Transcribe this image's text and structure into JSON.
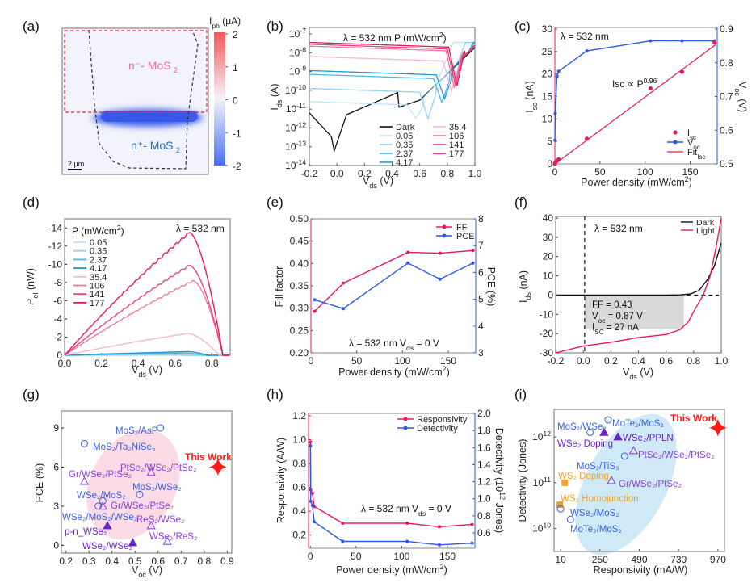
{
  "colors": {
    "pink": "#e8185e",
    "blue": "#2a5ae6",
    "dark": "#111111",
    "frame": "#8a8a8a",
    "red_star": "#ff1a1a",
    "purple": "#7a2fd0",
    "orange": "#f2a32a",
    "pink_ellipse": "#fbdbe6",
    "blue_ellipse": "#cfe9f7",
    "fill_box": "#d9d9d9"
  },
  "chart_data": [
    {
      "id": "a",
      "panel_label": "(a)",
      "type": "heatmap",
      "title": "",
      "colorbar": {
        "label": "I_ph (μA)",
        "ticks": [
          "2",
          "1",
          "0",
          "-1",
          "-2"
        ],
        "range": [
          -2,
          2
        ]
      },
      "regions": [
        {
          "label": "n⁻- MoS₂",
          "color": "#e86aa0"
        },
        {
          "label": "n⁺- MoS₂",
          "color": "#2272c0"
        }
      ],
      "scale_bar": "2 μm",
      "hotspot_value": -2
    },
    {
      "id": "b",
      "panel_label": "(b)",
      "type": "line",
      "annotation": "λ = 532 nm    P (mW/cm²)",
      "xlabel": "V_ds (V)",
      "ylabel": "I_ds (A)",
      "yscale": "log",
      "xlim": [
        -0.2,
        1.0
      ],
      "ylim_exp": [
        -14,
        -7
      ],
      "xticks": [
        "-0.2",
        "0.0",
        "0.2",
        "0.4",
        "0.6",
        "0.8",
        "1.0"
      ],
      "yticks": [
        "10⁻⁷",
        "10⁻⁸",
        "10⁻⁹",
        "10⁻¹⁰",
        "10⁻¹¹",
        "10⁻¹²",
        "10⁻¹³",
        "10⁻¹⁴"
      ],
      "series": [
        {
          "name": "Dark",
          "color": "#111111",
          "log_isc": -11.2,
          "voc": -0.01,
          "dip": -13.0
        },
        {
          "name": "0.05",
          "color": "#bfe6f5",
          "log_isc": -10.6,
          "voc": 0.57,
          "dip": -11.3
        },
        {
          "name": "0.35",
          "color": "#8fd3ef",
          "log_isc": -9.9,
          "voc": 0.66,
          "dip": -11.3
        },
        {
          "name": "2.37",
          "color": "#4fb8e6",
          "log_isc": -9.15,
          "voc": 0.76,
          "dip": -10.4
        },
        {
          "name": "4.17",
          "color": "#1b9ad6",
          "log_isc": -8.95,
          "voc": 0.78,
          "dip": -10.2
        },
        {
          "name": "35.4",
          "color": "#f5b8cf",
          "log_isc": -8.2,
          "voc": 0.83,
          "dip": -9.8
        },
        {
          "name": "106",
          "color": "#ee7aa4",
          "log_isc": -7.65,
          "voc": 0.85,
          "dip": -9.6
        },
        {
          "name": "141",
          "color": "#e8457f",
          "log_isc": -7.55,
          "voc": 0.86,
          "dip": -9.5
        },
        {
          "name": "177",
          "color": "#e8185e",
          "log_isc": -7.45,
          "voc": 0.87,
          "dip": -9.5
        }
      ]
    },
    {
      "id": "c",
      "panel_label": "(c)",
      "type": "scatter",
      "annotation": "λ = 532 nm",
      "fit_annotation": "Isc ∝ P^0.96",
      "xlabel": "Power density (mW/cm²)",
      "ylabel_left": "I_sc (nA)",
      "ylabel_right": "V_oc (V)",
      "xlim": [
        0,
        180
      ],
      "ylim_left": [
        0,
        30
      ],
      "ylim_right": [
        0.5,
        0.9
      ],
      "xticks": [
        "0",
        "50",
        "100",
        "150"
      ],
      "yticks_left": [
        "0",
        "5",
        "10",
        "15",
        "20",
        "25",
        "30"
      ],
      "yticks_right": [
        "0.5",
        "0.6",
        "0.7",
        "0.8",
        "0.9"
      ],
      "x": [
        0.05,
        0.35,
        2.37,
        4.17,
        35.4,
        106,
        141,
        177
      ],
      "series": [
        {
          "name": "I_sc",
          "axis": "left",
          "values": [
            0.02,
            0.2,
            0.7,
            1.0,
            5.6,
            16.8,
            20.5,
            27
          ]
        },
        {
          "name": "V_oc",
          "axis": "right",
          "values": [
            0.57,
            0.65,
            0.76,
            0.775,
            0.835,
            0.865,
            0.865,
            0.865
          ]
        },
        {
          "name": "Fit_I_sc",
          "axis": "left",
          "fit": [
            [
              0,
              0
            ],
            [
              178,
              26.5
            ]
          ]
        }
      ],
      "legend": [
        "I_sc",
        "V_oc",
        "Fit_I_sc"
      ]
    },
    {
      "id": "d",
      "panel_label": "(d)",
      "type": "line",
      "annotation": "λ = 532 nm",
      "legend_title": "P (mW/cm²)",
      "xlabel": "V_ds (V)",
      "ylabel": "P_el (nW)",
      "xlim": [
        0,
        0.9
      ],
      "ylim": [
        0,
        -15
      ],
      "xticks": [
        "0.0",
        "0.2",
        "0.4",
        "0.6",
        "0.8"
      ],
      "yticks": [
        "0",
        "-2",
        "-4",
        "-6",
        "-8",
        "-10",
        "-12",
        "-14"
      ],
      "series": [
        {
          "name": "0.05",
          "color": "#bfe6f5",
          "peak": -0.02,
          "vpeak": 0.55,
          "voc": 0.57
        },
        {
          "name": "0.35",
          "color": "#8fd3ef",
          "peak": -0.08,
          "vpeak": 0.6,
          "voc": 0.66
        },
        {
          "name": "2.37",
          "color": "#4fb8e6",
          "peak": -0.25,
          "vpeak": 0.65,
          "voc": 0.76
        },
        {
          "name": "4.17",
          "color": "#1b9ad6",
          "peak": -0.4,
          "vpeak": 0.67,
          "voc": 0.78
        },
        {
          "name": "35.4",
          "color": "#f5b8cf",
          "peak": -2.4,
          "vpeak": 0.67,
          "voc": 0.84
        },
        {
          "name": "106",
          "color": "#ee7aa4",
          "peak": -8.2,
          "vpeak": 0.7,
          "voc": 0.86
        },
        {
          "name": "141",
          "color": "#e8457f",
          "peak": -9.9,
          "vpeak": 0.68,
          "voc": 0.86
        },
        {
          "name": "177",
          "color": "#e8185e",
          "peak": -13.5,
          "vpeak": 0.68,
          "voc": 0.86
        }
      ]
    },
    {
      "id": "e",
      "panel_label": "(e)",
      "type": "line",
      "annotation": "λ = 532 nm   V_ds = 0 V",
      "xlabel": "Power density (mW/cm²)",
      "ylabel_left": "Fill factor",
      "ylabel_right": "PCE (%)",
      "xlim": [
        0,
        180
      ],
      "ylim_left": [
        0.2,
        0.5
      ],
      "ylim_right": [
        3,
        8
      ],
      "xticks": [
        "0",
        "50",
        "100",
        "150"
      ],
      "yticks_left": [
        "0.20",
        "0.25",
        "0.30",
        "0.35",
        "0.40",
        "0.45",
        "0.50"
      ],
      "yticks_right": [
        "3",
        "4",
        "5",
        "6",
        "7",
        "8"
      ],
      "x": [
        4.17,
        35.4,
        106,
        141,
        177
      ],
      "series": [
        {
          "name": "FF",
          "axis": "left",
          "values": [
            0.293,
            0.356,
            0.425,
            0.423,
            0.429
          ]
        },
        {
          "name": "PCE",
          "axis": "right",
          "values": [
            4.98,
            4.65,
            6.35,
            5.75,
            6.35
          ]
        }
      ]
    },
    {
      "id": "f",
      "panel_label": "(f)",
      "type": "line",
      "annotation": "λ = 532 nm",
      "xlabel": "V_ds (V)",
      "ylabel": "I_ds (nA)",
      "xlim": [
        -0.2,
        1.0
      ],
      "ylim": [
        -30,
        40
      ],
      "xticks": [
        "-0.2",
        "0.0",
        "0.2",
        "0.4",
        "0.6",
        "0.8",
        "1.0"
      ],
      "yticks": [
        "-30",
        "-20",
        "-10",
        "0",
        "10",
        "20",
        "30",
        "40"
      ],
      "info_box": [
        "FF = 0.43",
        "V_oc = 0.87 V",
        "I_SC = 27 nA"
      ],
      "series": [
        {
          "name": "Dark",
          "color": "#111111",
          "x": [
            -0.2,
            0.6,
            0.7,
            0.78,
            0.84,
            0.9,
            0.95,
            1.0
          ],
          "y": [
            0,
            0,
            0.1,
            0.6,
            2.5,
            8,
            15,
            27
          ]
        },
        {
          "name": "Light",
          "color": "#e8185e",
          "x": [
            -0.2,
            0.0,
            0.2,
            0.4,
            0.6,
            0.7,
            0.76,
            0.82,
            0.87,
            0.92,
            0.96,
            1.0
          ],
          "y": [
            -30,
            -26.5,
            -24.5,
            -22,
            -20.5,
            -18,
            -14,
            -6,
            0,
            10,
            24,
            40
          ]
        }
      ]
    },
    {
      "id": "g",
      "panel_label": "(g)",
      "type": "scatter",
      "xlabel": "V_oc (V)",
      "ylabel": "PCE (%)",
      "xlim": [
        0.18,
        0.92
      ],
      "ylim": [
        -0.6,
        10.3
      ],
      "xticks": [
        "0.2",
        "0.3",
        "0.4",
        "0.5",
        "0.6",
        "0.7",
        "0.8",
        "0.9"
      ],
      "yticks": [
        "0",
        "3",
        "6",
        "9"
      ],
      "points": [
        {
          "label": "MoS₂/AsP",
          "x": 0.61,
          "y": 9.0,
          "marker": "circle",
          "color": "#3b62e0"
        },
        {
          "label": "MoS₂/Ta₂NiSe₅",
          "x": 0.28,
          "y": 7.8,
          "marker": "circle",
          "color": "#3b62e0"
        },
        {
          "label": "PtSe₂/WSe₂/PtSe₂",
          "x": 0.57,
          "y": 5.6,
          "marker": "triangle",
          "color": "#8a3fd6"
        },
        {
          "label": "Gr/WSe₂/PtSe₂",
          "x": 0.28,
          "y": 4.9,
          "marker": "triangle",
          "color": "#8a3fd6"
        },
        {
          "label": "MoS₂/WSe₂",
          "x": 0.52,
          "y": 3.9,
          "marker": "circle",
          "color": "#3b62e0"
        },
        {
          "label": "WSe₂/MoS₂",
          "x": 0.36,
          "y": 3.4,
          "marker": "circle",
          "color": "#3b62e0"
        },
        {
          "label": "Gr/WSe₂/PtSe₂",
          "x": 0.36,
          "y": 3.0,
          "marker": "triangle",
          "color": "#8a3fd6"
        },
        {
          "label": "WSe₂/MoS₂/WSe₂",
          "x": 0.34,
          "y": 3.0,
          "marker": "circle",
          "color": "#3b62e0"
        },
        {
          "label": "ReS₂/WSe₂",
          "x": 0.57,
          "y": 1.5,
          "marker": "triangle",
          "color": "#8a3fd6"
        },
        {
          "label": "p-n_WSe₂",
          "x": 0.38,
          "y": 1.5,
          "marker": "triangle-filled",
          "color": "#6a22c8"
        },
        {
          "label": "WSe₂/ReS₂",
          "x": 0.64,
          "y": 0.3,
          "marker": "triangle",
          "color": "#8a3fd6"
        },
        {
          "label": "WSe₂/WSe₂",
          "x": 0.49,
          "y": 0.2,
          "marker": "triangle-filled",
          "color": "#6a22c8"
        },
        {
          "label": "This Work",
          "x": 0.86,
          "y": 6.0,
          "marker": "star",
          "color": "#ff1a1a"
        }
      ]
    },
    {
      "id": "h",
      "panel_label": "(h)",
      "type": "line",
      "annotation": "λ = 532 nm   V_ds = 0 V",
      "xlabel": "Power density (mW/cm²)",
      "ylabel_left": "Responsivity (A/W)",
      "ylabel_right": "Detectivity (10¹² Jones)",
      "xlim": [
        -2,
        180
      ],
      "ylim_left": [
        0.09,
        1.22
      ],
      "ylim_right": [
        0.42,
        2.0
      ],
      "xticks": [
        "0",
        "50",
        "100",
        "150"
      ],
      "yticks_left": [
        "0.2",
        "0.4",
        "0.6",
        "0.8",
        "1.0",
        "1.2"
      ],
      "yticks_right": [
        "0.6",
        "0.8",
        "1.0",
        "1.2",
        "1.4",
        "1.6",
        "1.8",
        "2.0"
      ],
      "x": [
        0.05,
        0.35,
        2.37,
        4.17,
        35.4,
        106,
        141,
        177
      ],
      "series": [
        {
          "name": "Responsivity",
          "axis": "left",
          "values": [
            0.98,
            0.58,
            0.55,
            0.44,
            0.3,
            0.3,
            0.27,
            0.29
          ]
        },
        {
          "name": "Detectivity",
          "axis": "right",
          "values": [
            1.62,
            0.97,
            0.92,
            0.73,
            0.5,
            0.5,
            0.46,
            0.48
          ]
        }
      ]
    },
    {
      "id": "i",
      "panel_label": "(i)",
      "type": "scatter",
      "xlabel": "Responsivity (mA/W)",
      "ylabel": "Detectivity (Jones)",
      "yscale": "log",
      "xlim": [
        -30,
        1010
      ],
      "ylim_exp": [
        9.5,
        12.6
      ],
      "xticks": [
        "10",
        "250",
        "490",
        "730",
        "970"
      ],
      "yticks": [
        "10¹⁰",
        "10¹¹",
        "10¹²"
      ],
      "points": [
        {
          "label": "MoS₂/WSe₂",
          "x": 190,
          "log_y": 12.1,
          "marker": "circle",
          "color": "#3b62e0"
        },
        {
          "label": "MoTe₂/MoS₂",
          "x": 300,
          "log_y": 12.37,
          "marker": "circle",
          "color": "#3b62e0"
        },
        {
          "label": "WSe₂ Doping",
          "x": 275,
          "log_y": 12.1,
          "marker": "triangle-filled",
          "color": "#6a22c8"
        },
        {
          "label": "WSe₂/PPLN",
          "x": 360,
          "log_y": 12.0,
          "marker": "triangle-filled",
          "color": "#6a22c8"
        },
        {
          "label": "PtSe₂/WSe₂/PtSe₂",
          "x": 455,
          "log_y": 11.7,
          "marker": "triangle",
          "color": "#8a3fd6"
        },
        {
          "label": "MoS₂/TiS₃",
          "x": 400,
          "log_y": 11.58,
          "marker": "circle",
          "color": "#3b62e0"
        },
        {
          "label": "Gr/WSe₂/PtSe₂",
          "x": 320,
          "log_y": 11.05,
          "marker": "triangle",
          "color": "#8a3fd6"
        },
        {
          "label": "WS₂ Doping",
          "x": 35,
          "log_y": 11.0,
          "marker": "square",
          "color": "#f2a32a"
        },
        {
          "label": "WS₂ Homojunction",
          "x": 5,
          "log_y": 10.52,
          "marker": "square",
          "color": "#f2a32a"
        },
        {
          "label": "WSe₂/MoS₂",
          "x": 10,
          "log_y": 10.43,
          "marker": "circle",
          "color": "#3b62e0"
        },
        {
          "label": "MoTe₂/MoS₂",
          "x": 70,
          "log_y": 10.2,
          "marker": "circle",
          "color": "#3b62e0"
        },
        {
          "label": "This Work",
          "x": 970,
          "log_y": 12.2,
          "marker": "star",
          "color": "#ff1a1a"
        }
      ]
    }
  ]
}
